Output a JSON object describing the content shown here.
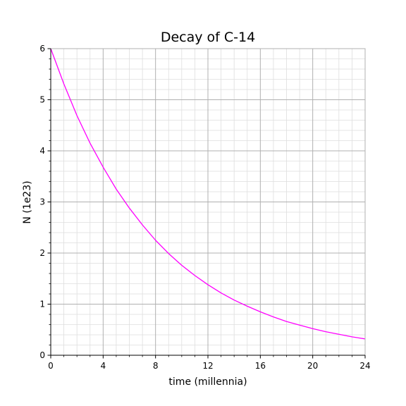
{
  "chart_data": {
    "type": "line",
    "title": "Decay of C-14",
    "xlabel": "time (millennia)",
    "ylabel": "N (1e23)",
    "xlim": [
      0,
      24
    ],
    "ylim": [
      0,
      6
    ],
    "xticks": [
      0,
      4,
      8,
      12,
      16,
      20,
      24
    ],
    "yticks": [
      0,
      1,
      2,
      3,
      4,
      5,
      6
    ],
    "grid": true,
    "series": [
      {
        "color": "#ff00ff",
        "x": [
          0,
          1,
          2,
          3,
          4,
          5,
          6,
          7,
          8,
          9,
          10,
          11,
          12,
          13,
          14,
          15,
          16,
          17,
          18,
          19,
          20,
          21,
          22,
          23,
          24
        ],
        "y": [
          6.0,
          5.31,
          4.69,
          4.15,
          3.68,
          3.25,
          2.88,
          2.55,
          2.25,
          1.99,
          1.76,
          1.56,
          1.38,
          1.22,
          1.08,
          0.96,
          0.85,
          0.75,
          0.66,
          0.59,
          0.52,
          0.46,
          0.41,
          0.36,
          0.32
        ]
      }
    ]
  }
}
